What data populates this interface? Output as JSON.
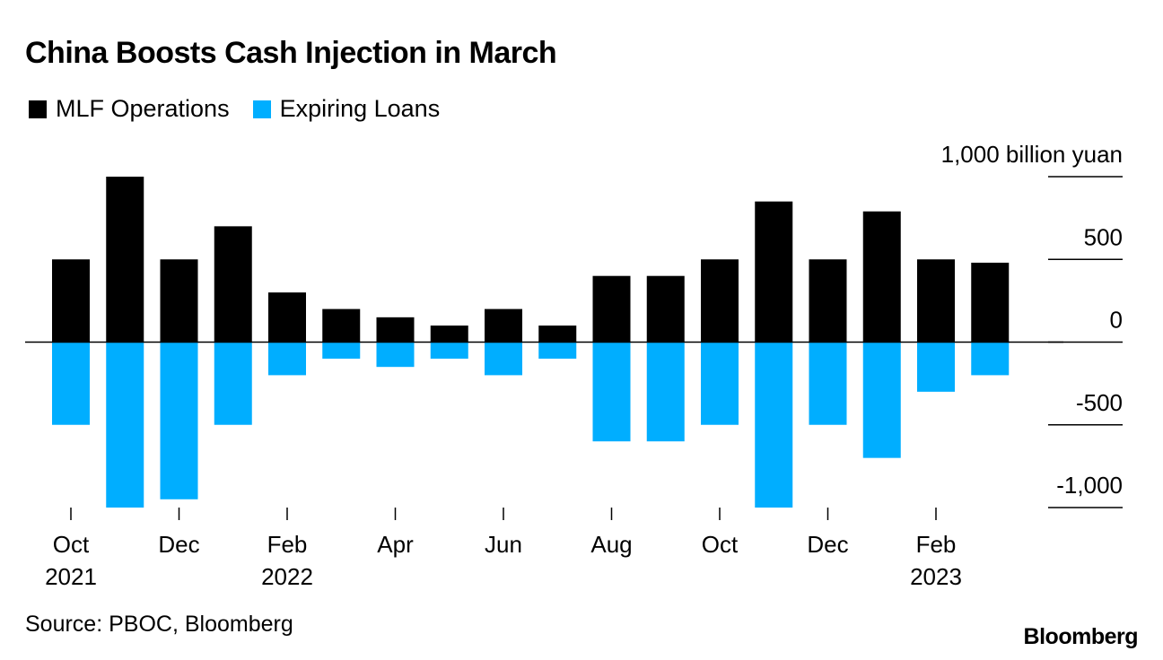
{
  "title": "China Boosts Cash Injection in March",
  "source": "Source: PBOC, Bloomberg",
  "brand": "Bloomberg",
  "colors": {
    "mlf": "#000000",
    "expiring": "#00aeff",
    "axis": "#000000"
  },
  "chart_data": {
    "type": "bar",
    "categories": [
      "Oct 2021",
      "Nov 2021",
      "Dec 2021",
      "Jan 2022",
      "Feb 2022",
      "Mar 2022",
      "Apr 2022",
      "May 2022",
      "Jun 2022",
      "Jul 2022",
      "Aug 2022",
      "Sep 2022",
      "Oct 2022",
      "Nov 2022",
      "Dec 2022",
      "Jan 2023",
      "Feb 2023",
      "Mar 2023"
    ],
    "series": [
      {
        "name": "MLF Operations",
        "color": "#000000",
        "values": [
          500,
          1000,
          500,
          700,
          300,
          200,
          150,
          100,
          200,
          100,
          400,
          400,
          500,
          850,
          500,
          790,
          500,
          480
        ]
      },
      {
        "name": "Expiring Loans",
        "color": "#00aeff",
        "values": [
          -500,
          -1000,
          -950,
          -500,
          -200,
          -100,
          -150,
          -100,
          -200,
          -100,
          -600,
          -600,
          -500,
          -1000,
          -500,
          -700,
          -300,
          -200
        ]
      }
    ],
    "ylim": [
      -1000,
      1000
    ],
    "yticks": [
      1000,
      500,
      0,
      -500,
      -1000
    ],
    "ytick_labels": [
      "1,000 billion yuan",
      "500",
      "0",
      "-500",
      "-1,000"
    ],
    "xtick_labels": [
      {
        "index": 0,
        "month": "Oct",
        "year": "2021"
      },
      {
        "index": 2,
        "month": "Dec",
        "year": ""
      },
      {
        "index": 4,
        "month": "Feb",
        "year": "2022"
      },
      {
        "index": 6,
        "month": "Apr",
        "year": ""
      },
      {
        "index": 8,
        "month": "Jun",
        "year": ""
      },
      {
        "index": 10,
        "month": "Aug",
        "year": ""
      },
      {
        "index": 12,
        "month": "Oct",
        "year": ""
      },
      {
        "index": 14,
        "month": "Dec",
        "year": ""
      },
      {
        "index": 16,
        "month": "Feb",
        "year": "2023"
      }
    ],
    "grid": false,
    "legend_position": "top-left",
    "stacked_around_zero": true
  }
}
